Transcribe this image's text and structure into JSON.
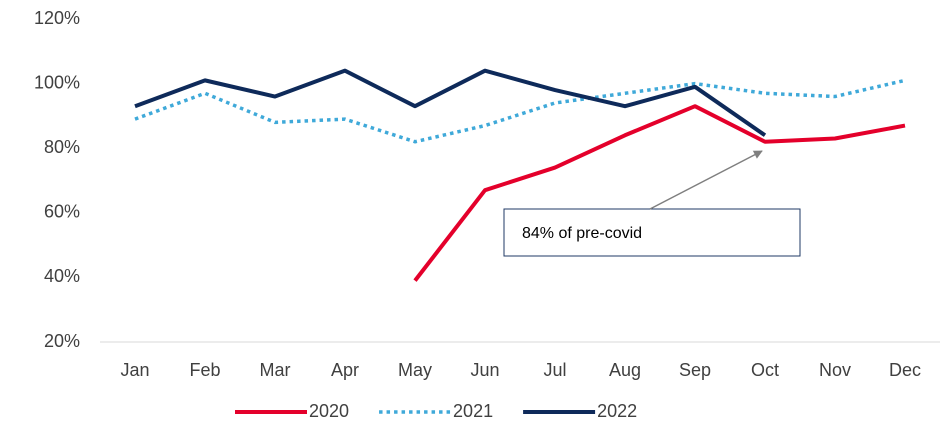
{
  "chart_data": {
    "type": "line",
    "categories": [
      "Jan",
      "Feb",
      "Mar",
      "Apr",
      "May",
      "Jun",
      "Jul",
      "Aug",
      "Sep",
      "Oct",
      "Nov",
      "Dec"
    ],
    "series": [
      {
        "name": "2020",
        "color": "#e4002b",
        "style": "solid",
        "values": [
          null,
          null,
          null,
          null,
          39,
          67,
          74,
          84,
          93,
          82,
          83,
          87
        ]
      },
      {
        "name": "2021",
        "color": "#3fa9d9",
        "style": "dotted",
        "values": [
          89,
          97,
          88,
          89,
          82,
          87,
          94,
          97,
          100,
          97,
          96,
          101
        ]
      },
      {
        "name": "2022",
        "color": "#0e2a5a",
        "style": "solid",
        "values": [
          93,
          101,
          96,
          104,
          93,
          104,
          98,
          93,
          99,
          84,
          null,
          null
        ]
      }
    ],
    "ylim": [
      20,
      120
    ],
    "yticks": [
      {
        "value": 20,
        "label": "20%"
      },
      {
        "value": 40,
        "label": "40%"
      },
      {
        "value": 60,
        "label": "60%"
      },
      {
        "value": 80,
        "label": "80%"
      },
      {
        "value": 100,
        "label": "100%"
      },
      {
        "value": 120,
        "label": "120%"
      }
    ],
    "grid": false,
    "legend": "bottom",
    "annotation": "84% of pre-covid"
  }
}
